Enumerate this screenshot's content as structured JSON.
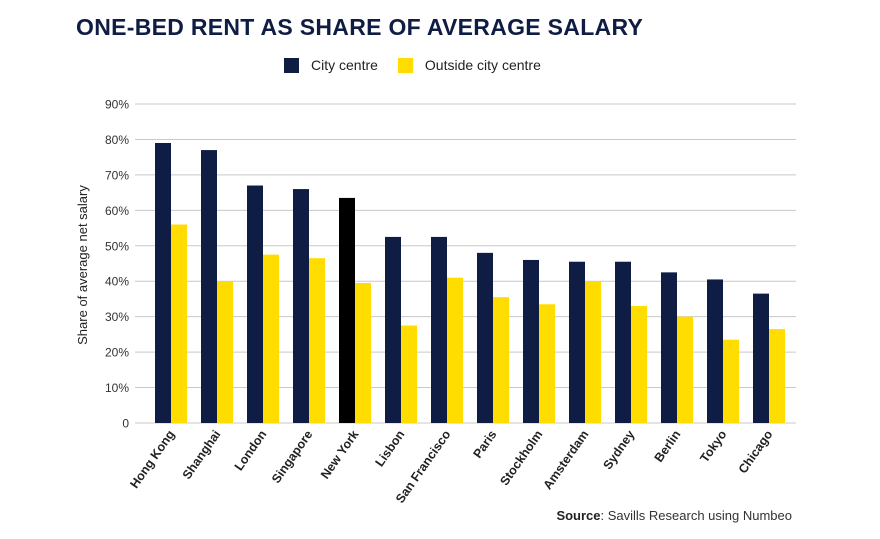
{
  "chart_data": {
    "type": "bar",
    "title": "ONE-BED RENT AS SHARE OF AVERAGE SALARY",
    "ylabel": "Share of average net salary",
    "xlabel": "",
    "ylim": [
      0,
      90
    ],
    "yticks": [
      "0",
      "10%",
      "20%",
      "30%",
      "40%",
      "50%",
      "60%",
      "70%",
      "80%",
      "90%"
    ],
    "grid": "horizontal",
    "legend_position": "top-center",
    "categories": [
      "Hong Kong",
      "Shanghai",
      "London",
      "Singapore",
      "New York",
      "Lisbon",
      "San Francisco",
      "Paris",
      "Stockholm",
      "Amsterdam",
      "Sydney",
      "Berlin",
      "Tokyo",
      "Chicago"
    ],
    "series": [
      {
        "name": "City centre",
        "color": "#0f1d44",
        "values": [
          79,
          77,
          67,
          66,
          63.5,
          52.5,
          52.5,
          48,
          46,
          45.5,
          45.5,
          42.5,
          40.5,
          36.5
        ]
      },
      {
        "name": "Outside city centre",
        "color": "#ffdd00",
        "values": [
          56,
          40,
          47.5,
          46.5,
          39.5,
          27.5,
          41,
          35.5,
          33.5,
          40,
          33,
          30,
          23.5,
          26.5
        ]
      }
    ],
    "highlight": {
      "category": "New York",
      "series": "City centre",
      "color": "#000000"
    }
  },
  "source": {
    "label": "Source",
    "text": ": Savills Research using Numbeo"
  }
}
